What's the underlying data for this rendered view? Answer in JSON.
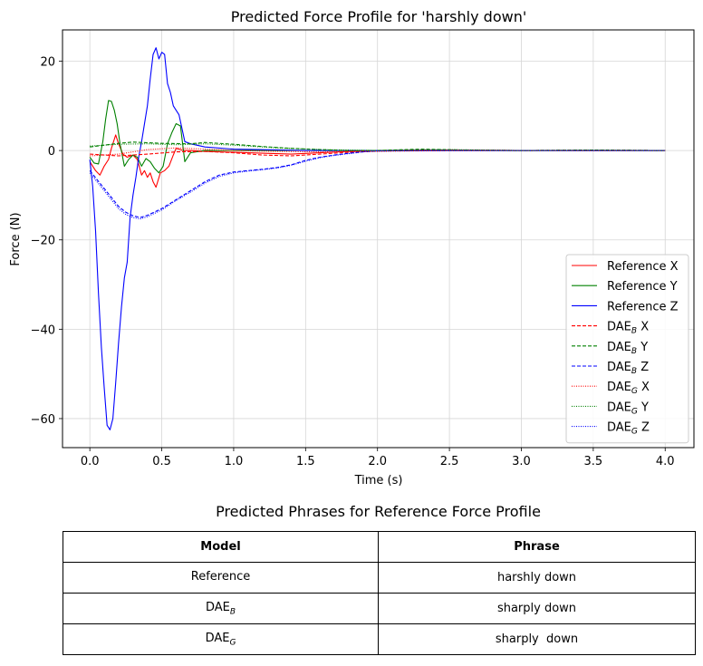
{
  "chart_data": {
    "type": "line",
    "title": "Predicted Force Profile for 'harshly down'",
    "xlabel": "Time (s)",
    "ylabel": "Force (N)",
    "xlim": [
      -0.19,
      4.2
    ],
    "ylim": [
      -66.5,
      27
    ],
    "xticks": [
      0.0,
      0.5,
      1.0,
      1.5,
      2.0,
      2.5,
      3.0,
      3.5,
      4.0
    ],
    "xtick_labels": [
      "0.0",
      "0.5",
      "1.0",
      "1.5",
      "2.0",
      "2.5",
      "3.0",
      "3.5",
      "4.0"
    ],
    "yticks": [
      -60,
      -40,
      -20,
      0,
      20
    ],
    "ytick_labels": [
      "−60",
      "−40",
      "−20",
      "0",
      "20"
    ],
    "grid": true,
    "legend_position": "lower-right",
    "series": [
      {
        "name": "Reference X",
        "legend_base": "Reference X",
        "legend_sub": "",
        "legend_suffix": "",
        "color": "#ff0000",
        "dash": "solid",
        "x": [
          0.0,
          0.04,
          0.07,
          0.1,
          0.13,
          0.15,
          0.18,
          0.2,
          0.23,
          0.26,
          0.3,
          0.33,
          0.36,
          0.38,
          0.4,
          0.42,
          0.44,
          0.46,
          0.49,
          0.52,
          0.55,
          0.58,
          0.6,
          0.62,
          0.65,
          0.7,
          0.8,
          1.0,
          1.2,
          1.4,
          1.6,
          1.8,
          2.0,
          2.5,
          3.0,
          3.5,
          4.0
        ],
        "y": [
          -2.5,
          -4.5,
          -5.5,
          -3.5,
          -2.0,
          0.5,
          3.5,
          1.5,
          -0.8,
          -1.5,
          -1.0,
          -2.0,
          -5.5,
          -4.5,
          -6.0,
          -5.0,
          -7.0,
          -8.2,
          -5.0,
          -4.5,
          -3.5,
          -1.0,
          0.5,
          0.3,
          0.0,
          0.0,
          -0.2,
          -0.4,
          -0.6,
          -0.8,
          -0.5,
          -0.2,
          0.0,
          0.1,
          0.0,
          0.0,
          0.0
        ]
      },
      {
        "name": "Reference Y",
        "legend_base": "Reference Y",
        "legend_sub": "",
        "legend_suffix": "",
        "color": "#008000",
        "dash": "solid",
        "x": [
          0.0,
          0.03,
          0.06,
          0.09,
          0.11,
          0.13,
          0.15,
          0.17,
          0.19,
          0.21,
          0.24,
          0.27,
          0.3,
          0.33,
          0.36,
          0.39,
          0.42,
          0.45,
          0.48,
          0.51,
          0.54,
          0.57,
          0.6,
          0.63,
          0.66,
          0.7,
          0.8,
          1.0,
          1.2,
          1.5,
          2.0,
          2.5,
          3.0,
          3.5,
          4.0
        ],
        "y": [
          -1.5,
          -2.8,
          -3.0,
          2.0,
          7.0,
          11.2,
          11.0,
          9.0,
          6.0,
          1.5,
          -3.5,
          -2.0,
          -1.0,
          -1.5,
          -3.5,
          -1.8,
          -2.5,
          -4.0,
          -5.0,
          -3.5,
          1.5,
          4.0,
          6.0,
          5.5,
          -2.5,
          -0.5,
          0.0,
          0.0,
          0.0,
          0.0,
          0.0,
          0.0,
          0.0,
          0.0,
          0.0
        ]
      },
      {
        "name": "Reference Z",
        "legend_base": "Reference Z",
        "legend_sub": "",
        "legend_suffix": "",
        "color": "#0000ff",
        "dash": "solid",
        "x": [
          0.0,
          0.02,
          0.04,
          0.06,
          0.08,
          0.1,
          0.12,
          0.14,
          0.16,
          0.18,
          0.2,
          0.22,
          0.24,
          0.26,
          0.28,
          0.3,
          0.32,
          0.34,
          0.36,
          0.38,
          0.4,
          0.42,
          0.44,
          0.46,
          0.48,
          0.5,
          0.52,
          0.54,
          0.56,
          0.58,
          0.6,
          0.62,
          0.64,
          0.66,
          0.7,
          0.8,
          1.0,
          1.5,
          2.0,
          3.0,
          4.0
        ],
        "y": [
          -2.0,
          -8.0,
          -18.0,
          -32.0,
          -44.0,
          -53.0,
          -61.5,
          -62.5,
          -60.0,
          -52.0,
          -43.0,
          -35.0,
          -28.5,
          -25.0,
          -15.0,
          -10.0,
          -6.0,
          -1.5,
          2.0,
          6.0,
          10.0,
          16.0,
          21.5,
          23.0,
          20.5,
          22.0,
          21.5,
          15.0,
          13.0,
          10.0,
          9.0,
          8.0,
          5.0,
          2.0,
          1.5,
          0.8,
          0.3,
          0.0,
          0.0,
          0.0,
          0.0
        ]
      },
      {
        "name": "DAE_B X",
        "legend_base": "DAE",
        "legend_sub": "B",
        "legend_suffix": " X",
        "color": "#ff0000",
        "dash": "dashed",
        "x": [
          0.0,
          0.2,
          0.4,
          0.6,
          0.8,
          1.0,
          1.2,
          1.4,
          1.6,
          1.8,
          2.0,
          2.3,
          2.6,
          3.0,
          3.5,
          4.0
        ],
        "y": [
          -0.8,
          -1.2,
          -0.8,
          -0.3,
          -0.2,
          -0.5,
          -1.0,
          -1.2,
          -0.8,
          -0.4,
          -0.1,
          0.2,
          0.1,
          0.0,
          0.1,
          0.0
        ]
      },
      {
        "name": "DAE_B Y",
        "legend_base": "DAE",
        "legend_sub": "B",
        "legend_suffix": " Y",
        "color": "#008000",
        "dash": "dashed",
        "x": [
          0.0,
          0.1,
          0.2,
          0.3,
          0.5,
          0.7,
          0.8,
          1.0,
          1.2,
          1.4,
          1.6,
          1.8,
          2.0,
          2.3,
          2.6,
          3.0,
          3.5,
          4.0
        ],
        "y": [
          0.8,
          1.2,
          1.6,
          1.9,
          1.6,
          1.5,
          1.8,
          1.4,
          0.9,
          0.5,
          0.2,
          0.0,
          0.0,
          0.3,
          0.1,
          0.0,
          0.1,
          0.0
        ]
      },
      {
        "name": "DAE_B Z",
        "legend_base": "DAE",
        "legend_sub": "B",
        "legend_suffix": " Z",
        "color": "#0000ff",
        "dash": "dashed",
        "x": [
          0.0,
          0.05,
          0.1,
          0.15,
          0.2,
          0.25,
          0.3,
          0.35,
          0.4,
          0.5,
          0.6,
          0.7,
          0.8,
          0.9,
          1.0,
          1.1,
          1.2,
          1.3,
          1.4,
          1.5,
          1.6,
          1.7,
          1.8,
          1.9,
          2.0,
          2.5,
          3.0,
          3.5,
          4.0
        ],
        "y": [
          -4.5,
          -6.5,
          -8.5,
          -10.5,
          -12.5,
          -13.8,
          -14.6,
          -15.0,
          -14.5,
          -13.0,
          -11.0,
          -9.0,
          -7.0,
          -5.5,
          -4.8,
          -4.5,
          -4.2,
          -3.8,
          -3.2,
          -2.2,
          -1.5,
          -1.0,
          -0.6,
          -0.3,
          -0.1,
          0.0,
          0.0,
          0.0,
          0.0
        ]
      },
      {
        "name": "DAE_G X",
        "legend_base": "DAE",
        "legend_sub": "G",
        "legend_suffix": " X",
        "color": "#ff0000",
        "dash": "dotted",
        "x": [
          0.0,
          0.2,
          0.4,
          0.6,
          0.8,
          1.0,
          1.3,
          1.6,
          2.0,
          2.5,
          3.0,
          3.5,
          4.0
        ],
        "y": [
          -1.2,
          -0.8,
          0.2,
          0.6,
          0.3,
          0.0,
          -0.2,
          -0.3,
          -0.2,
          0.0,
          0.0,
          0.0,
          0.0
        ]
      },
      {
        "name": "DAE_G Y",
        "legend_base": "DAE",
        "legend_sub": "G",
        "legend_suffix": " Y",
        "color": "#008000",
        "dash": "dotted",
        "x": [
          0.0,
          0.2,
          0.4,
          0.6,
          0.8,
          1.0,
          1.3,
          1.6,
          2.0,
          2.5,
          3.0,
          3.5,
          4.0
        ],
        "y": [
          1.0,
          1.4,
          1.5,
          1.3,
          1.5,
          1.2,
          0.6,
          0.2,
          0.0,
          0.2,
          0.0,
          0.1,
          0.0
        ]
      },
      {
        "name": "DAE_G Z",
        "legend_base": "DAE",
        "legend_sub": "G",
        "legend_suffix": " Z",
        "color": "#0000ff",
        "dash": "dotted",
        "x": [
          0.0,
          0.05,
          0.1,
          0.15,
          0.2,
          0.25,
          0.3,
          0.35,
          0.4,
          0.5,
          0.6,
          0.7,
          0.8,
          0.9,
          1.0,
          1.1,
          1.2,
          1.3,
          1.4,
          1.5,
          1.6,
          1.7,
          1.8,
          1.9,
          2.0,
          2.5,
          3.0,
          3.5,
          4.0
        ],
        "y": [
          -5.0,
          -7.0,
          -9.0,
          -11.0,
          -13.0,
          -14.3,
          -15.0,
          -15.3,
          -14.8,
          -13.3,
          -11.2,
          -9.3,
          -7.3,
          -5.8,
          -5.0,
          -4.6,
          -4.3,
          -3.9,
          -3.3,
          -2.4,
          -1.6,
          -1.1,
          -0.7,
          -0.3,
          -0.1,
          0.0,
          0.0,
          0.0,
          0.0
        ]
      }
    ]
  },
  "table": {
    "title": "Predicted Phrases for Reference Force Profile",
    "header_model": "Model",
    "header_phrase": "Phrase",
    "rows": [
      {
        "model": "Reference",
        "model_sub": "",
        "phrase": "harshly down"
      },
      {
        "model": "DAE",
        "model_sub": "B",
        "phrase": "sharply down"
      },
      {
        "model": "DAE",
        "model_sub": "G",
        "phrase": "sharply  down"
      }
    ]
  }
}
